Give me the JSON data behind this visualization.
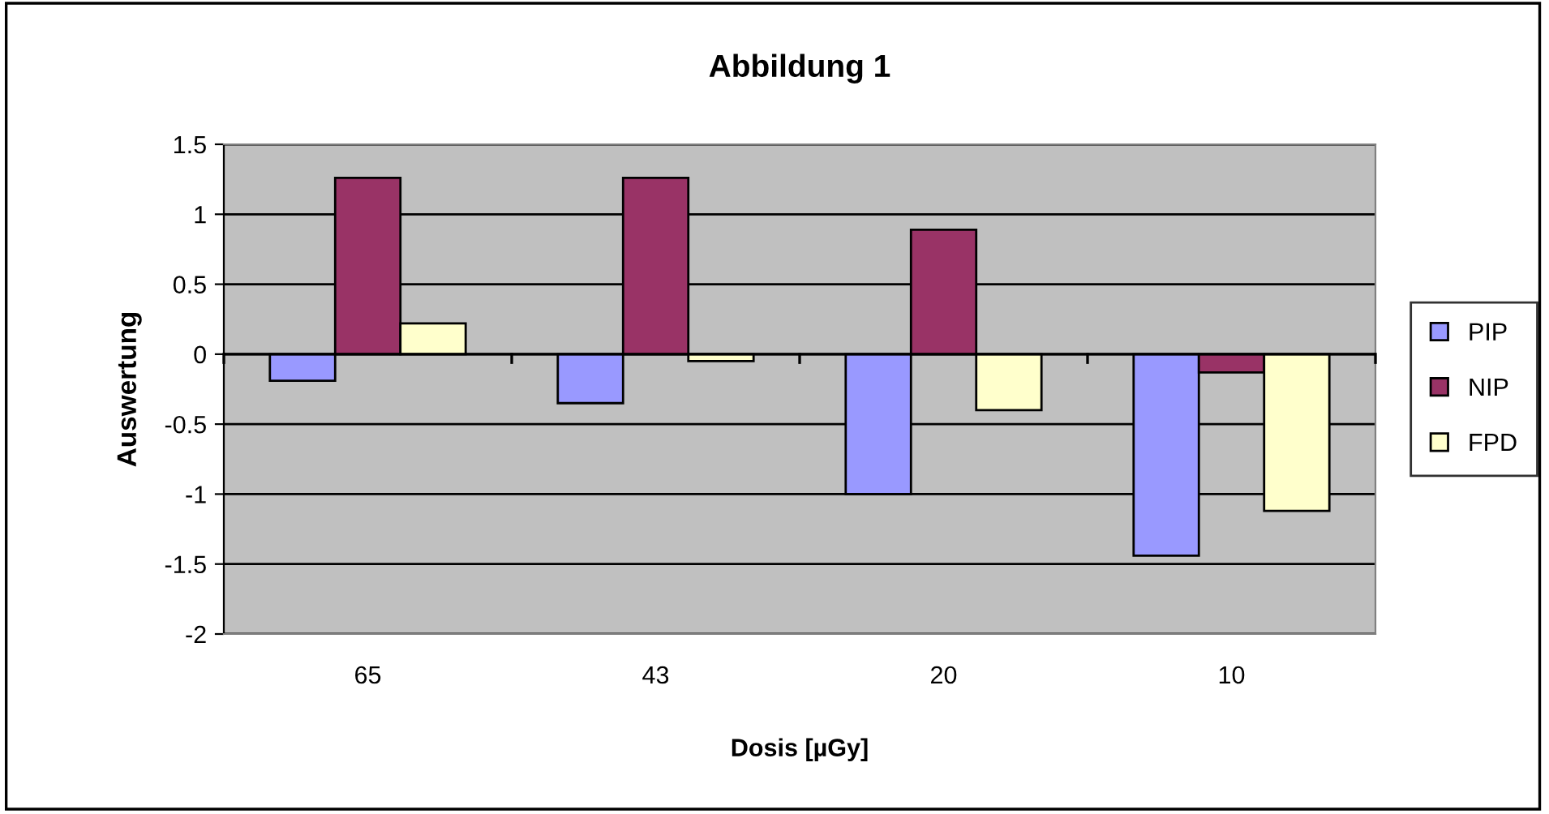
{
  "chart_data": {
    "type": "bar",
    "title": "Abbildung 1",
    "xlabel": "Dosis [µGy]",
    "ylabel": "Auswertung",
    "categories": [
      "65",
      "43",
      "20",
      "10"
    ],
    "series": [
      {
        "name": "PIP",
        "color": "#9999ff",
        "values": [
          -0.19,
          -0.35,
          -1.0,
          -1.44
        ]
      },
      {
        "name": "NIP",
        "color": "#993366",
        "values": [
          1.26,
          1.26,
          0.89,
          -0.13
        ]
      },
      {
        "name": "FPD",
        "color": "#ffffcc",
        "values": [
          0.22,
          -0.05,
          -0.4,
          -1.12
        ]
      }
    ],
    "ylim": [
      -2,
      1.5
    ],
    "yticks": [
      -2,
      -1.5,
      -1,
      -0.5,
      0,
      0.5,
      1,
      1.5
    ],
    "grid": "y",
    "legend": "right"
  }
}
